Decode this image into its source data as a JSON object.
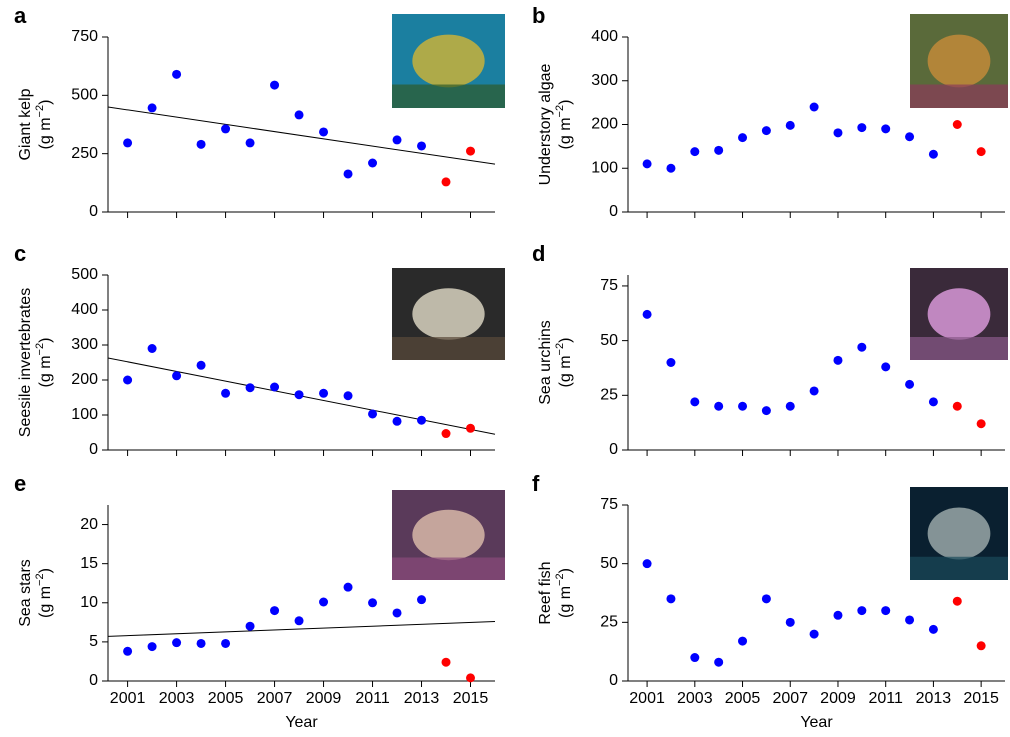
{
  "chart_data": [
    {
      "type": "scatter",
      "panel_label": "a",
      "ylabel": "Giant kelp",
      "unit": {
        "base": "(g m",
        "exponent": "−2",
        "close": ")"
      },
      "xlim": [
        2000.2,
        2016
      ],
      "xticks": [
        2001,
        2003,
        2005,
        2007,
        2009,
        2011,
        2013,
        2015
      ],
      "xtick_labels": false,
      "ylim": [
        0,
        750
      ],
      "yticks": [
        0,
        250,
        500,
        750
      ],
      "series": [
        {
          "color": "#0000ff",
          "x": [
            2001,
            2002,
            2003,
            2004,
            2005,
            2006,
            2007,
            2008,
            2009,
            2010,
            2011,
            2012,
            2013
          ],
          "values": [
            296,
            446,
            590,
            290,
            356,
            296,
            544,
            416,
            343,
            163,
            210,
            309,
            283
          ]
        },
        {
          "color": "#ff0000",
          "x": [
            2014,
            2015
          ],
          "values": [
            129,
            261
          ]
        }
      ],
      "trendline": {
        "color": "#000000",
        "x": [
          2000.2,
          2016
        ],
        "values": [
          450,
          205
        ]
      }
    },
    {
      "type": "scatter",
      "panel_label": "b",
      "ylabel": "Understory algae",
      "unit": {
        "base": "(g m",
        "exponent": "−2",
        "close": ")"
      },
      "xlim": [
        2000.2,
        2016
      ],
      "xticks": [
        2001,
        2003,
        2005,
        2007,
        2009,
        2011,
        2013,
        2015
      ],
      "xtick_labels": false,
      "ylim": [
        0,
        400
      ],
      "yticks": [
        0,
        100,
        200,
        300,
        400
      ],
      "series": [
        {
          "color": "#0000ff",
          "x": [
            2001,
            2002,
            2003,
            2004,
            2005,
            2006,
            2007,
            2008,
            2009,
            2010,
            2011,
            2012,
            2013
          ],
          "values": [
            110,
            100,
            138,
            141,
            170,
            186,
            198,
            240,
            181,
            193,
            190,
            172,
            132
          ]
        },
        {
          "color": "#ff0000",
          "x": [
            2014,
            2015
          ],
          "values": [
            200,
            138
          ]
        }
      ]
    },
    {
      "type": "scatter",
      "panel_label": "c",
      "ylabel": "Seesile invertebrates",
      "unit": {
        "base": "(g m",
        "exponent": "−2",
        "close": ")"
      },
      "xlim": [
        2000.2,
        2016
      ],
      "xticks": [
        2001,
        2003,
        2005,
        2007,
        2009,
        2011,
        2013,
        2015
      ],
      "xtick_labels": false,
      "ylim": [
        0,
        500
      ],
      "yticks": [
        0,
        100,
        200,
        300,
        400,
        500
      ],
      "series": [
        {
          "color": "#0000ff",
          "x": [
            2001,
            2002,
            2003,
            2004,
            2005,
            2006,
            2007,
            2008,
            2009,
            2010,
            2011,
            2012,
            2013
          ],
          "values": [
            200,
            290,
            212,
            242,
            162,
            178,
            180,
            158,
            162,
            155,
            103,
            82,
            85
          ]
        },
        {
          "color": "#ff0000",
          "x": [
            2014,
            2015
          ],
          "values": [
            47,
            62
          ]
        }
      ],
      "trendline": {
        "color": "#000000",
        "x": [
          2000.2,
          2016
        ],
        "values": [
          263,
          45
        ]
      }
    },
    {
      "type": "scatter",
      "panel_label": "d",
      "ylabel": "Sea urchins",
      "unit": {
        "base": "(g m",
        "exponent": "−2",
        "close": ")"
      },
      "xlim": [
        2000.2,
        2016
      ],
      "xticks": [
        2001,
        2003,
        2005,
        2007,
        2009,
        2011,
        2013,
        2015
      ],
      "xtick_labels": false,
      "ylim": [
        0,
        80
      ],
      "yticks": [
        0,
        25,
        50,
        75
      ],
      "series": [
        {
          "color": "#0000ff",
          "x": [
            2001,
            2002,
            2003,
            2004,
            2005,
            2006,
            2007,
            2008,
            2009,
            2010,
            2011,
            2012,
            2013
          ],
          "values": [
            62,
            40,
            22,
            20,
            20,
            18,
            20,
            27,
            41,
            47,
            38,
            30,
            22
          ]
        },
        {
          "color": "#ff0000",
          "x": [
            2014,
            2015
          ],
          "values": [
            20,
            12
          ]
        }
      ]
    },
    {
      "type": "scatter",
      "panel_label": "e",
      "ylabel": "Sea stars",
      "unit": {
        "base": "(g m",
        "exponent": "−2",
        "close": ")"
      },
      "xlabel": "Year",
      "xlim": [
        2000.2,
        2016
      ],
      "xticks": [
        2001,
        2003,
        2005,
        2007,
        2009,
        2011,
        2013,
        2015
      ],
      "xtick_labels": true,
      "ylim": [
        0,
        22.5
      ],
      "yticks": [
        0,
        5,
        10,
        15,
        20
      ],
      "series": [
        {
          "color": "#0000ff",
          "x": [
            2001,
            2002,
            2003,
            2004,
            2005,
            2006,
            2007,
            2008,
            2009,
            2010,
            2011,
            2012,
            2013
          ],
          "values": [
            3.8,
            4.4,
            4.9,
            4.8,
            4.8,
            7.0,
            9.0,
            7.7,
            10.1,
            12.0,
            10.0,
            8.7,
            10.4
          ]
        },
        {
          "color": "#ff0000",
          "x": [
            2014,
            2015
          ],
          "values": [
            2.4,
            0.4
          ]
        }
      ],
      "trendline": {
        "color": "#000000",
        "x": [
          2000.2,
          2016
        ],
        "values": [
          5.7,
          7.6
        ]
      }
    },
    {
      "type": "scatter",
      "panel_label": "f",
      "ylabel": "Reef fish",
      "unit": {
        "base": "(g m",
        "exponent": "−2",
        "close": ")"
      },
      "xlabel": "Year",
      "xlim": [
        2000.2,
        2016
      ],
      "xticks": [
        2001,
        2003,
        2005,
        2007,
        2009,
        2011,
        2013,
        2015
      ],
      "xtick_labels": true,
      "ylim": [
        0,
        75
      ],
      "yticks": [
        0,
        25,
        50,
        75
      ],
      "series": [
        {
          "color": "#0000ff",
          "x": [
            2001,
            2002,
            2003,
            2004,
            2005,
            2006,
            2007,
            2008,
            2009,
            2010,
            2011,
            2012,
            2013
          ],
          "values": [
            50,
            35,
            10,
            8,
            17,
            35,
            25,
            20,
            28,
            30,
            30,
            26,
            22
          ]
        },
        {
          "color": "#ff0000",
          "x": [
            2014,
            2015
          ],
          "values": [
            34,
            15
          ]
        }
      ]
    }
  ]
}
